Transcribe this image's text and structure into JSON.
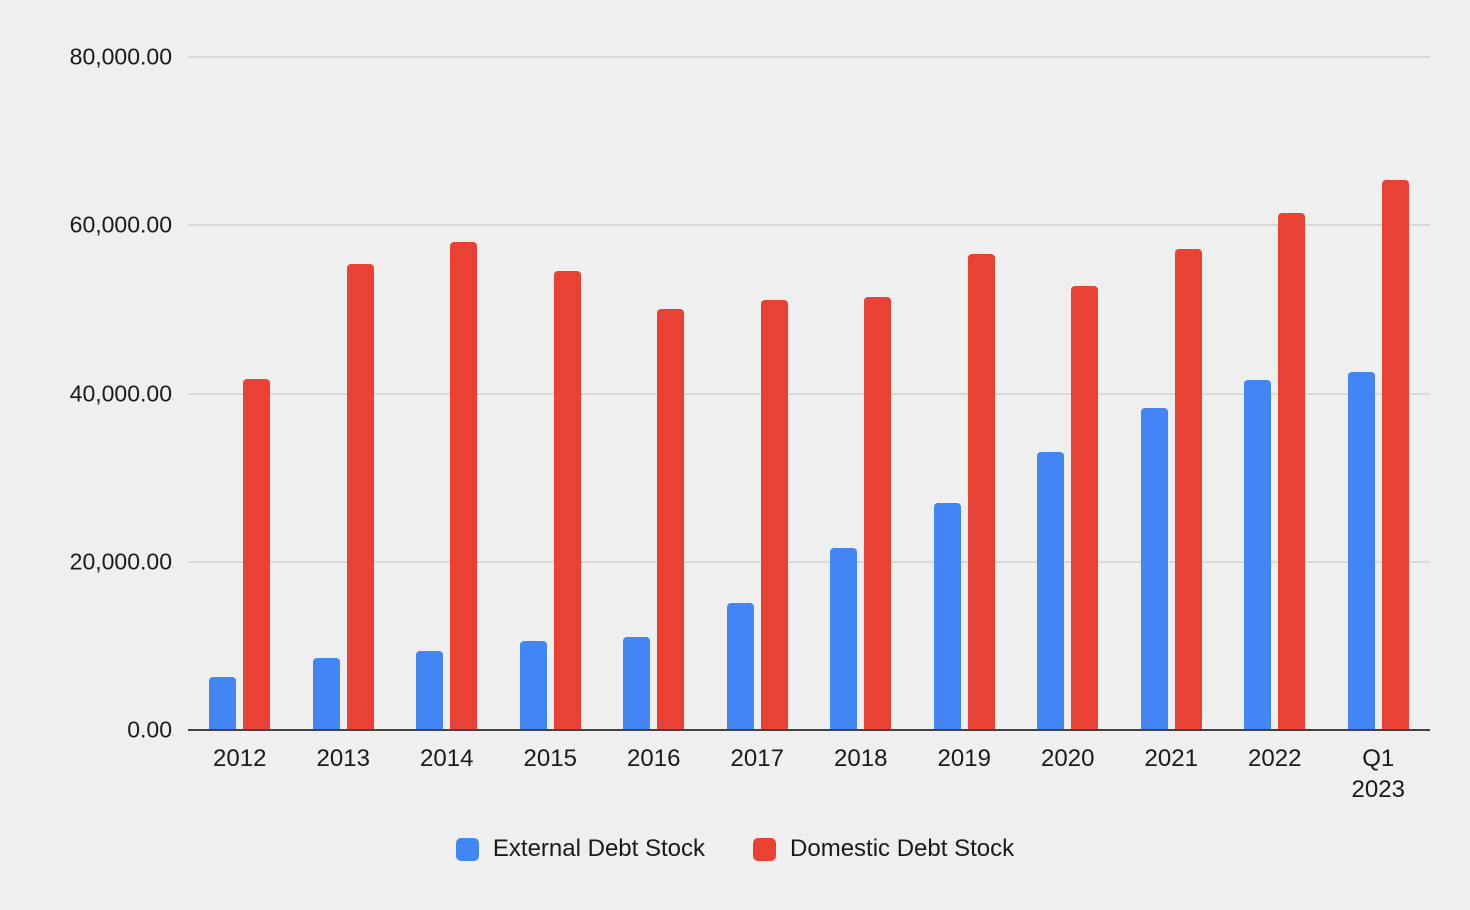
{
  "chart_data": {
    "type": "bar",
    "title": "",
    "xlabel": "",
    "ylabel": "",
    "categories": [
      "2012",
      "2013",
      "2014",
      "2015",
      "2016",
      "2017",
      "2018",
      "2019",
      "2020",
      "2021",
      "2022",
      "Q1 2023"
    ],
    "series": [
      {
        "name": "External Debt Stock",
        "color": "#4285f4",
        "values": [
          6300,
          8600,
          9400,
          10600,
          11100,
          15100,
          21600,
          27000,
          33100,
          38300,
          41600,
          42600
        ]
      },
      {
        "name": "Domestic Debt Stock",
        "color": "#e94235",
        "values": [
          41700,
          55400,
          58000,
          54600,
          50100,
          51100,
          51500,
          56600,
          52800,
          57200,
          61400,
          65400
        ]
      }
    ],
    "ylim": [
      0,
      80000
    ],
    "yticks": [
      {
        "value": 0,
        "label": "0.00"
      },
      {
        "value": 20000,
        "label": "20,000.00"
      },
      {
        "value": 40000,
        "label": "40,000.00"
      },
      {
        "value": 60000,
        "label": "60,000.00"
      },
      {
        "value": 80000,
        "label": "80,000.00"
      }
    ],
    "grid": true,
    "legend_position": "bottom"
  },
  "colors": {
    "background": "#efefef",
    "gridline": "#d9d9d9",
    "baseline": "#424242",
    "text": "#1a1a1a"
  }
}
